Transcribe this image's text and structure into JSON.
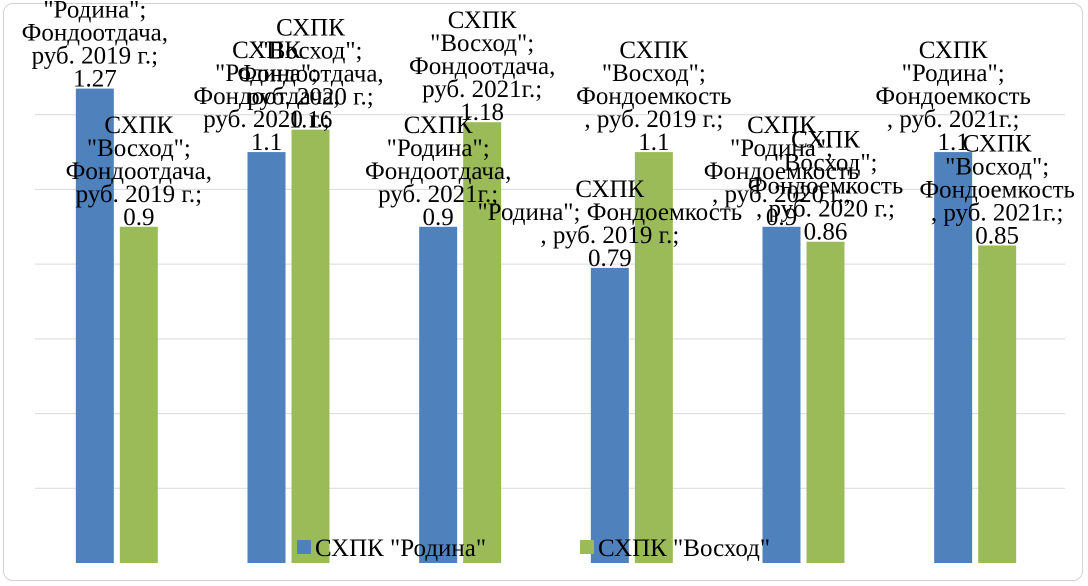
{
  "chart_data": {
    "type": "bar",
    "categories": [
      "Фондоотдача, руб. 2019 г.",
      "Фондоотдача, руб. 2020 г.",
      "Фондоотдача, руб. 2021г.",
      "Фондоемкость, руб. 2019 г.",
      "Фондоемкость, руб. 2020 г.",
      "Фондоемкость, руб. 2021г."
    ],
    "series": [
      {
        "name": "СХПК \"Родина\"",
        "values": [
          1.27,
          1.1,
          0.9,
          0.79,
          0.9,
          1.1
        ],
        "color": "#4f81bd"
      },
      {
        "name": "СХПК \"Восход\"",
        "values": [
          0.9,
          1.16,
          1.18,
          1.1,
          0.86,
          0.85
        ],
        "color": "#9bbb59"
      }
    ],
    "data_labels": [
      {
        "series": "СХПК \"Родина\"",
        "lines": [
          [
            "СХПК",
            "\"Родина\";",
            "Фондоотдача,",
            "руб. 2019 г.;",
            "1.27"
          ],
          [
            "СХПК",
            "\"Родина\";",
            "Фондоотдача,",
            "руб. 2020 г.;",
            "1.1"
          ],
          [
            "СХПК",
            "\"Родина\";",
            "Фондоотдача,",
            "руб. 2021г.;",
            "0.9"
          ],
          [
            "СХПК",
            "\"Родина\"; Фондоемкость",
            ", руб. 2019 г.;",
            "0.79"
          ],
          [
            "СХПК",
            "\"Родина\";",
            "Фондоемкость",
            ", руб. 2020 г.;",
            "0.9"
          ],
          [
            "СХПК",
            "\"Родина\";",
            "Фондоемкость",
            ", руб. 2021г.;",
            "1.1"
          ]
        ]
      },
      {
        "series": "СХПК \"Восход\"",
        "lines": [
          [
            "СХПК",
            "\"Восход\";",
            "Фондоотдача,",
            "руб. 2019 г.;",
            "0.9"
          ],
          [
            "СХПК",
            "\"Восход\";",
            "Фондоотдача,",
            "руб. 2020 г.;",
            "1.16"
          ],
          [
            "СХПК",
            "\"Восход\";",
            "Фондоотдача,",
            "руб. 2021г.;",
            "1.18"
          ],
          [
            "СХПК",
            "\"Восход\";",
            "Фондоемкость",
            ", руб. 2019 г.;",
            "1.1"
          ],
          [
            "СХПК",
            "\"Восход\";",
            "Фондоемкость",
            ", руб. 2020 г.;",
            "0.86"
          ],
          [
            "СХПК",
            "\"Восход\";",
            "Фондоемкость",
            ", руб. 2021г.;",
            "0.85"
          ]
        ]
      }
    ],
    "ylim": [
      0,
      1.4
    ],
    "grid": true,
    "legend": "bottom",
    "xlabel": "",
    "ylabel": "",
    "title": ""
  }
}
